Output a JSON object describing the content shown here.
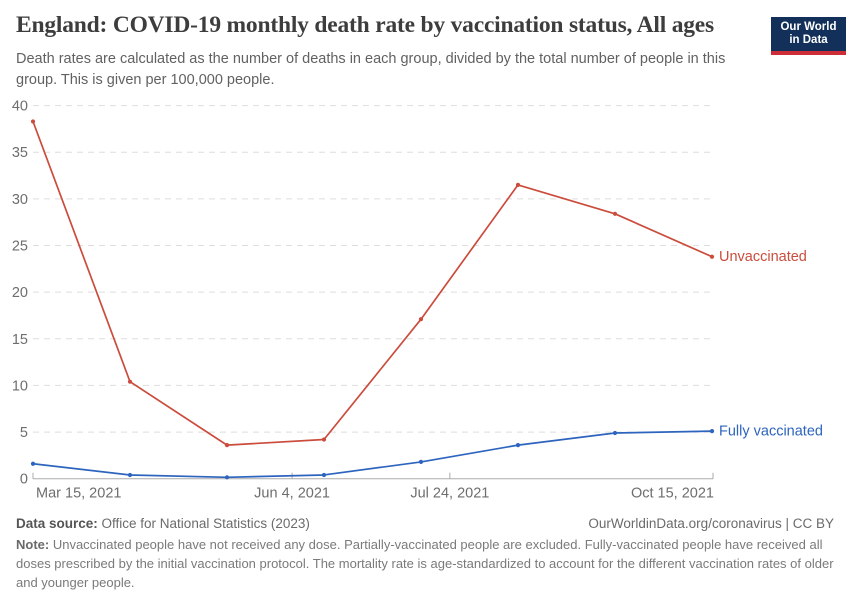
{
  "header": {
    "title": "England: COVID-19 monthly death rate by vaccination status, All ages",
    "subtitle": "Death rates are calculated as the number of deaths in each group, divided by the total number of people in this group. This is given per 100,000 people.",
    "logo": {
      "line1": "Our World",
      "line2": "in Data",
      "bg_color": "#12305a",
      "stripe_color": "#cd2d37"
    }
  },
  "chart_data": {
    "type": "line",
    "title": "England: COVID-19 monthly death rate by vaccination status, All ages",
    "xlabel": "",
    "ylabel": "",
    "ylim": [
      0,
      40
    ],
    "y_ticks": [
      0,
      5,
      10,
      15,
      20,
      25,
      30,
      35,
      40
    ],
    "x_ticks": [
      {
        "label": "Mar 15, 2021",
        "pos": 0
      },
      {
        "label": "Jun 4, 2021",
        "pos": 0.381
      },
      {
        "label": "Jul 24, 2021",
        "pos": 0.613
      },
      {
        "label": "Oct 15, 2021",
        "pos": 1
      }
    ],
    "grid": "horizontal-dashed",
    "legend_position": "line-end-labels",
    "series": [
      {
        "name": "Unvaccinated",
        "color": "#cb4c3c",
        "values": [
          38.3,
          10.4,
          3.6,
          4.2,
          17.1,
          31.5,
          28.4,
          23.8
        ]
      },
      {
        "name": "Fully vaccinated",
        "color": "#2d64be",
        "values": [
          1.6,
          0.4,
          0.15,
          0.4,
          1.8,
          3.6,
          4.9,
          5.1
        ]
      }
    ]
  },
  "footer": {
    "source_label": "Data source:",
    "source_value": " Office for National Statistics (2023)",
    "link": "OurWorldinData.org/coronavirus | CC BY",
    "note_label": "Note:",
    "note_text": " Unvaccinated people have not received any dose. Partially-vaccinated people are excluded. Fully-vaccinated people have received all doses prescribed by the initial vaccination protocol. The mortality rate is age-standardized to account for the different vaccination rates of older and younger people."
  }
}
